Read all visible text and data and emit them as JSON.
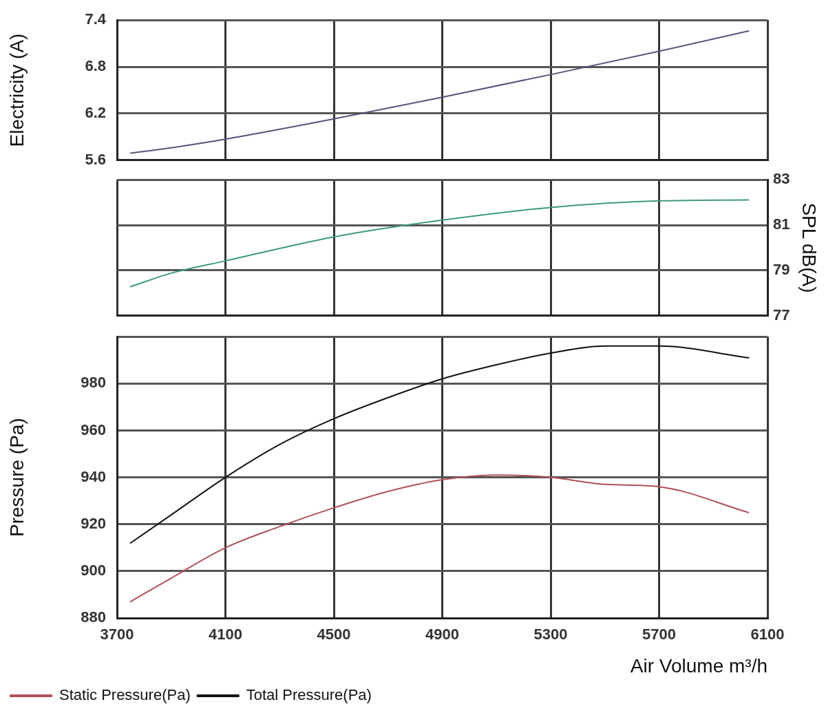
{
  "chart_data": [
    {
      "type": "line",
      "ylabel": "Electricity (A)",
      "xlim": [
        3700,
        6100
      ],
      "xticks": [
        3700,
        4100,
        4500,
        4900,
        5300,
        5700,
        6100
      ],
      "ylim": [
        5.6,
        7.4
      ],
      "yticks": [
        5.6,
        6.2,
        6.8,
        7.4
      ],
      "tick_labels": "y",
      "grid": true,
      "marker": "none",
      "legend": false,
      "series": [
        {
          "color": "#55557a",
          "x": [
            3750,
            3900,
            4100,
            4500,
            4900,
            5300,
            5700,
            6030
          ],
          "values": [
            5.69,
            5.76,
            5.87,
            6.13,
            6.41,
            6.7,
            7.0,
            7.26
          ]
        }
      ]
    },
    {
      "type": "line",
      "y2label": "SPL dB(A)",
      "xlim": [
        3700,
        6100
      ],
      "xticks": [
        3700,
        4100,
        4500,
        4900,
        5300,
        5700,
        6100
      ],
      "y2lim": [
        77,
        83
      ],
      "y2ticks": [
        77,
        79,
        81,
        83
      ],
      "tick_labels": "y",
      "grid": true,
      "marker": "none",
      "legend": false,
      "series": [
        {
          "color": "#3f9a78",
          "axis": "y2",
          "x": [
            3750,
            3900,
            4100,
            4500,
            4900,
            5300,
            5700,
            6030
          ],
          "values": [
            78.28,
            78.88,
            79.42,
            80.48,
            81.22,
            81.78,
            82.07,
            82.11
          ]
        }
      ]
    },
    {
      "type": "line",
      "xlabel": "Air Volume m³/h",
      "ylabel": "Pressure (Pa)",
      "xlim": [
        3700,
        6100
      ],
      "xticks": [
        3700,
        4100,
        4500,
        4900,
        5300,
        5700,
        6100
      ],
      "ylim": [
        880,
        1000
      ],
      "yticks": [
        880,
        900,
        920,
        940,
        960,
        980,
        {
          "value": 1000,
          "label": null
        }
      ],
      "grid": true,
      "marker": "none",
      "legend": "bottom left",
      "series": [
        {
          "name": "Static Pressure(Pa)",
          "color": "#b0505a",
          "x": [
            3750,
            3900,
            4100,
            4300,
            4500,
            4700,
            4900,
            5100,
            5300,
            5500,
            5700,
            6030
          ],
          "values": [
            887,
            897,
            910,
            919,
            927,
            934,
            939,
            941,
            940,
            937,
            936,
            925
          ]
        },
        {
          "name": "Total Pressure(Pa)",
          "color": "#111111",
          "x": [
            3750,
            3900,
            4100,
            4300,
            4500,
            4700,
            4900,
            5100,
            5300,
            5500,
            5700,
            6030
          ],
          "values": [
            912,
            924,
            940,
            954,
            965,
            974,
            982,
            988,
            993,
            996,
            996,
            991
          ]
        }
      ]
    }
  ]
}
